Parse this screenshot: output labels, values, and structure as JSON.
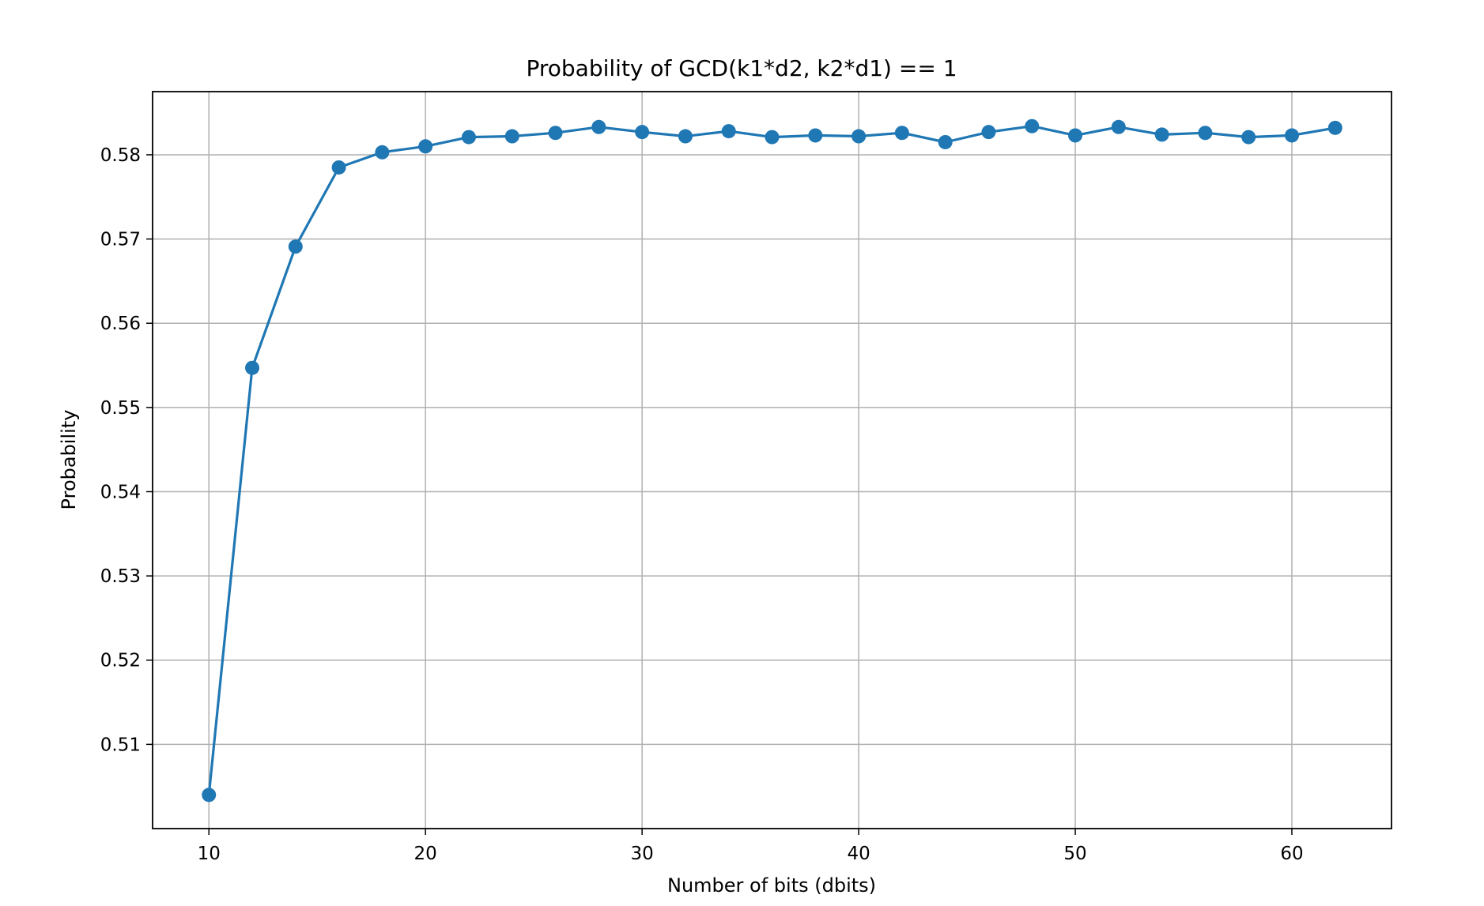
{
  "chart_data": {
    "type": "line",
    "title": "Probability of GCD(k1*d2, k2*d1) == 1",
    "xlabel": "Number of bits (dbits)",
    "ylabel": "Probability",
    "xlim": [
      7.4,
      64.6
    ],
    "ylim": [
      0.5,
      0.5875
    ],
    "xticks": [
      10,
      20,
      30,
      40,
      50,
      60
    ],
    "yticks": [
      0.51,
      0.52,
      0.53,
      0.54,
      0.55,
      0.56,
      0.57,
      0.58
    ],
    "grid": true,
    "series": [
      {
        "color": "#1f77b4",
        "marker": "circle",
        "x": [
          10,
          12,
          14,
          16,
          18,
          20,
          22,
          24,
          26,
          28,
          30,
          32,
          34,
          36,
          38,
          40,
          42,
          44,
          46,
          48,
          50,
          52,
          54,
          56,
          58,
          60,
          62
        ],
        "y": [
          0.504,
          0.5547,
          0.5691,
          0.5785,
          0.5803,
          0.581,
          0.5821,
          0.5822,
          0.5826,
          0.5833,
          0.5827,
          0.5822,
          0.5828,
          0.5821,
          0.5823,
          0.5822,
          0.5826,
          0.5815,
          0.5827,
          0.5834,
          0.5823,
          0.5833,
          0.5824,
          0.5826,
          0.5821,
          0.5823,
          0.5832
        ]
      }
    ]
  }
}
